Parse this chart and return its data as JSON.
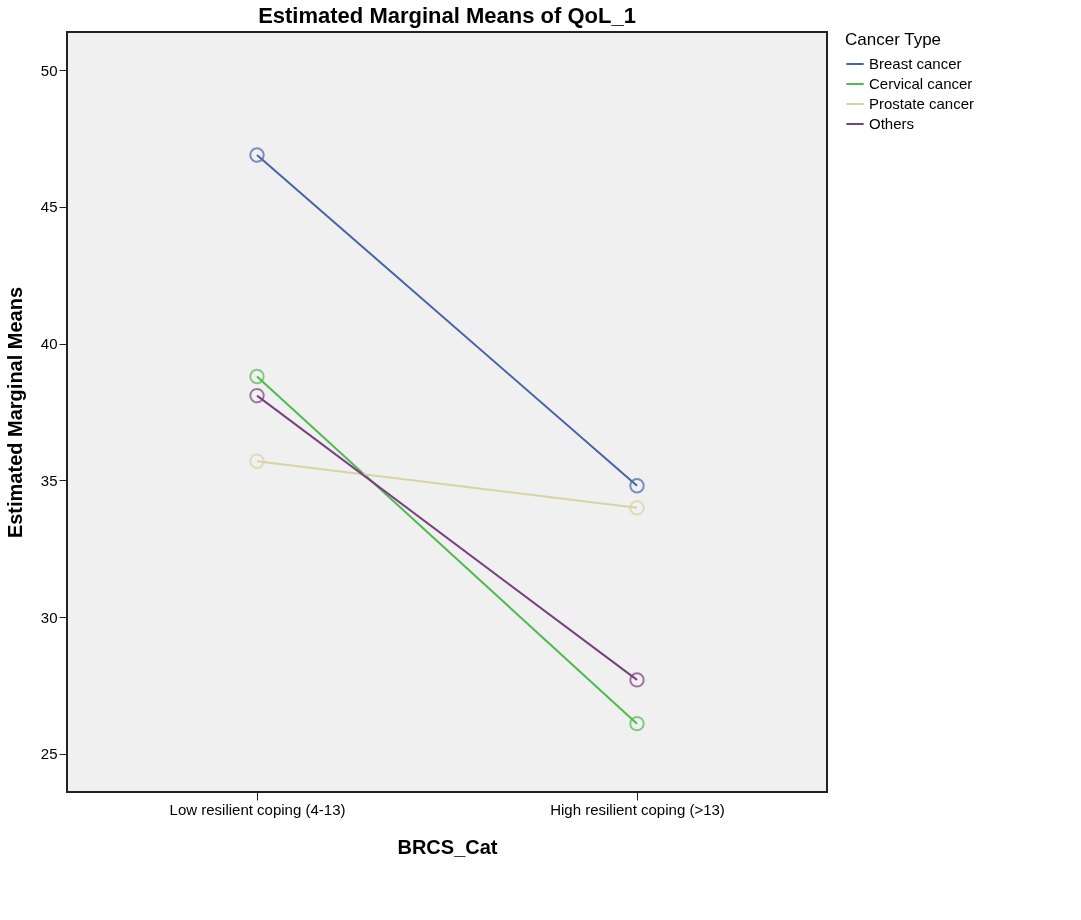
{
  "chart_data": {
    "type": "line",
    "title": "Estimated Marginal Means of QoL_1",
    "xlabel": "BRCS_Cat",
    "ylabel": "Estimated Marginal Means",
    "legend_title": "Cancer Type",
    "categories": [
      "Low resilient coping (4-13)",
      "High resilient coping (>13)"
    ],
    "series": [
      {
        "name": "Breast cancer",
        "color": "#4a62a8",
        "values": [
          46.9,
          34.8
        ]
      },
      {
        "name": "Cervical cancer",
        "color": "#4dbb4d",
        "values": [
          38.8,
          26.1
        ]
      },
      {
        "name": "Prostate cancer",
        "color": "#d9d2a4",
        "values": [
          35.7,
          34.0
        ]
      },
      {
        "name": "Others",
        "color": "#7a3f80",
        "values": [
          38.1,
          27.7
        ]
      }
    ],
    "ylim": [
      23.6,
      51.4
    ],
    "yticks": [
      25,
      30,
      35,
      40,
      45,
      50
    ],
    "grid": false,
    "legend": "top right",
    "marker": "circle",
    "line_style": "solid"
  }
}
